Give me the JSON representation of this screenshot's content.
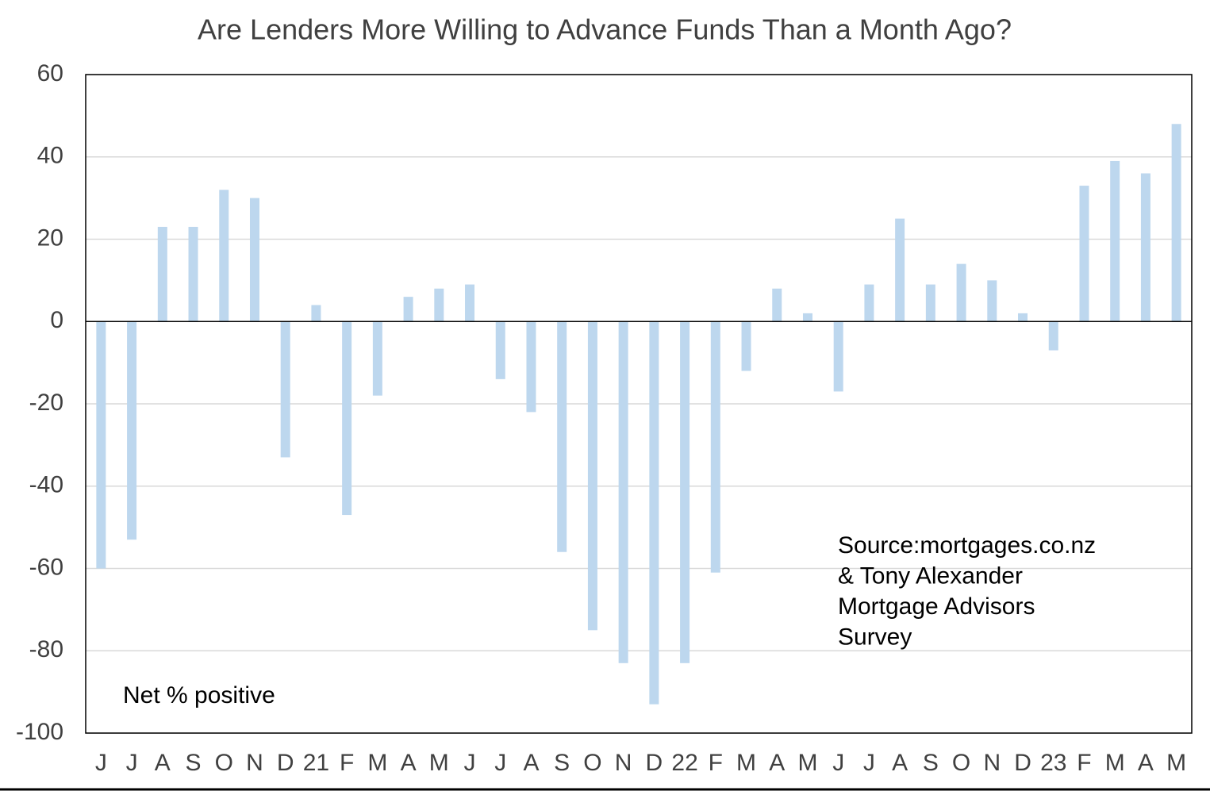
{
  "chart_data": {
    "type": "bar",
    "title": "Are Lenders More Willing to Advance Funds Than a Month Ago?",
    "categories": [
      "J",
      "J",
      "A",
      "S",
      "O",
      "N",
      "D",
      "21",
      "F",
      "M",
      "A",
      "M",
      "J",
      "J",
      "A",
      "S",
      "O",
      "N",
      "D",
      "22",
      "F",
      "M",
      "A",
      "M",
      "J",
      "J",
      "A",
      "S",
      "O",
      "N",
      "D",
      "23",
      "F",
      "M",
      "A",
      "M"
    ],
    "values": [
      -60,
      -53,
      23,
      23,
      32,
      30,
      -33,
      4,
      -47,
      -18,
      6,
      8,
      9,
      -14,
      -22,
      -56,
      -75,
      -83,
      -93,
      -83,
      -61,
      -12,
      8,
      2,
      -17,
      9,
      25,
      9,
      14,
      10,
      2,
      -7,
      33,
      39,
      36,
      48
    ],
    "color": "#bdd7ee",
    "ylim": [
      -100,
      60
    ],
    "yticks": [
      -100,
      -80,
      -60,
      -40,
      -20,
      0,
      20,
      40,
      60
    ],
    "grid": true,
    "annotations": {
      "source": [
        "Source:mortgages.co.nz",
        "& Tony Alexander",
        "Mortgage Advisors",
        "Survey"
      ],
      "unit": "Net % positive"
    }
  }
}
